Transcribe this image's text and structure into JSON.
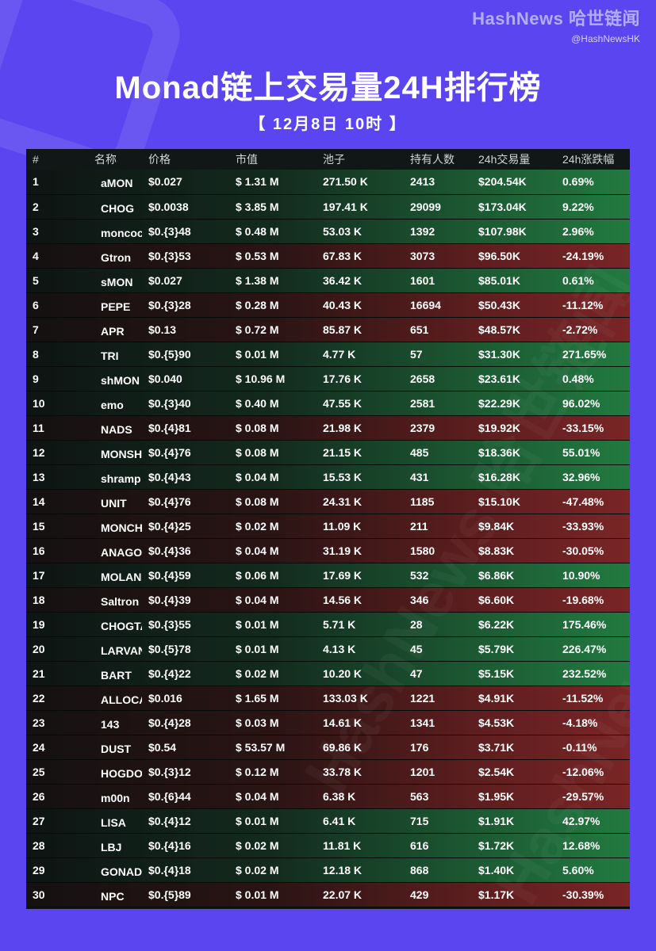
{
  "brand": {
    "name": "HashNews 哈世链闻",
    "handle": "@HashNewsHK"
  },
  "title": "Monad链上交易量24H排行榜",
  "subtitle": "【 12月8日  10时 】",
  "table": {
    "headers": [
      "#",
      "名称",
      "价格",
      "市值",
      "池子",
      "持有人数",
      "24h交易量",
      "24h涨跌幅"
    ],
    "rows": [
      {
        "rank": "1",
        "name": "aMON",
        "price": "$0.027",
        "mcap": "$ 1.31 M",
        "pool": "271.50 K",
        "holders": "2413",
        "volume": "$204.54K",
        "change": "0.69%",
        "trend": "up"
      },
      {
        "rank": "2",
        "name": "CHOG",
        "price": "$0.0038",
        "mcap": "$ 3.85 M",
        "pool": "197.41 K",
        "holders": "29099",
        "volume": "$173.04K",
        "change": "9.22%",
        "trend": "up"
      },
      {
        "rank": "3",
        "name": "moncock",
        "price": "$0.{3}48",
        "mcap": "$ 0.48 M",
        "pool": "53.03 K",
        "holders": "1392",
        "volume": "$107.98K",
        "change": "2.96%",
        "trend": "up"
      },
      {
        "rank": "4",
        "name": "Gtron",
        "price": "$0.{3}53",
        "mcap": "$ 0.53 M",
        "pool": "67.83 K",
        "holders": "3073",
        "volume": "$96.50K",
        "change": "-24.19%",
        "trend": "down"
      },
      {
        "rank": "5",
        "name": "sMON",
        "price": "$0.027",
        "mcap": "$ 1.38 M",
        "pool": "36.42 K",
        "holders": "1601",
        "volume": "$85.01K",
        "change": "0.61%",
        "trend": "up"
      },
      {
        "rank": "6",
        "name": "PEPE",
        "price": "$0.{3}28",
        "mcap": "$ 0.28 M",
        "pool": "40.43 K",
        "holders": "16694",
        "volume": "$50.43K",
        "change": "-11.12%",
        "trend": "down"
      },
      {
        "rank": "7",
        "name": "APR",
        "price": "$0.13",
        "mcap": "$ 0.72 M",
        "pool": "85.87 K",
        "holders": "651",
        "volume": "$48.57K",
        "change": "-2.72%",
        "trend": "down"
      },
      {
        "rank": "8",
        "name": "TRI",
        "price": "$0.{5}90",
        "mcap": "$ 0.01 M",
        "pool": "4.77 K",
        "holders": "57",
        "volume": "$31.30K",
        "change": "271.65%",
        "trend": "up"
      },
      {
        "rank": "9",
        "name": "shMON",
        "price": "$0.040",
        "mcap": "$ 10.96 M",
        "pool": "17.76 K",
        "holders": "2658",
        "volume": "$23.61K",
        "change": "0.48%",
        "trend": "up"
      },
      {
        "rank": "10",
        "name": "emo",
        "price": "$0.{3}40",
        "mcap": "$ 0.40 M",
        "pool": "47.55 K",
        "holders": "2581",
        "volume": "$22.29K",
        "change": "96.02%",
        "trend": "up"
      },
      {
        "rank": "11",
        "name": "NADS",
        "price": "$0.{4}81",
        "mcap": "$ 0.08 M",
        "pool": "21.98 K",
        "holders": "2379",
        "volume": "$19.92K",
        "change": "-33.15%",
        "trend": "down"
      },
      {
        "rank": "12",
        "name": "MONSHI",
        "price": "$0.{4}76",
        "mcap": "$ 0.08 M",
        "pool": "21.15 K",
        "holders": "485",
        "volume": "$18.36K",
        "change": "55.01%",
        "trend": "up"
      },
      {
        "rank": "13",
        "name": "shramp",
        "price": "$0.{4}43",
        "mcap": "$ 0.04 M",
        "pool": "15.53 K",
        "holders": "431",
        "volume": "$16.28K",
        "change": "32.96%",
        "trend": "up"
      },
      {
        "rank": "14",
        "name": "UNIT",
        "price": "$0.{4}76",
        "mcap": "$ 0.08 M",
        "pool": "24.31 K",
        "holders": "1185",
        "volume": "$15.10K",
        "change": "-47.48%",
        "trend": "down"
      },
      {
        "rank": "15",
        "name": "MONCHEL",
        "price": "$0.{4}25",
        "mcap": "$ 0.02 M",
        "pool": "11.09 K",
        "holders": "211",
        "volume": "$9.84K",
        "change": "-33.93%",
        "trend": "down"
      },
      {
        "rank": "16",
        "name": "ANAGO",
        "price": "$0.{4}36",
        "mcap": "$ 0.04 M",
        "pool": "31.19 K",
        "holders": "1580",
        "volume": "$8.83K",
        "change": "-30.05%",
        "trend": "down"
      },
      {
        "rank": "17",
        "name": "MOLANDAK",
        "price": "$0.{4}59",
        "mcap": "$ 0.06 M",
        "pool": "17.69 K",
        "holders": "532",
        "volume": "$6.86K",
        "change": "10.90%",
        "trend": "up"
      },
      {
        "rank": "18",
        "name": "Saltron",
        "price": "$0.{4}39",
        "mcap": "$ 0.04 M",
        "pool": "14.56 K",
        "holders": "346",
        "volume": "$6.60K",
        "change": "-19.68%",
        "trend": "down"
      },
      {
        "rank": "19",
        "name": "CHOGTARD",
        "price": "$0.{3}55",
        "mcap": "$ 0.01 M",
        "pool": "5.71 K",
        "holders": "28",
        "volume": "$6.22K",
        "change": "175.46%",
        "trend": "up"
      },
      {
        "rank": "20",
        "name": "LARVANAD",
        "price": "$0.{5}78",
        "mcap": "$ 0.01 M",
        "pool": "4.13 K",
        "holders": "45",
        "volume": "$5.79K",
        "change": "226.47%",
        "trend": "up"
      },
      {
        "rank": "21",
        "name": "BART",
        "price": "$0.{4}22",
        "mcap": "$ 0.02 M",
        "pool": "10.20 K",
        "holders": "47",
        "volume": "$5.15K",
        "change": "232.52%",
        "trend": "up"
      },
      {
        "rank": "22",
        "name": "ALLOCA",
        "price": "$0.016",
        "mcap": "$ 1.65 M",
        "pool": "133.03 K",
        "holders": "1221",
        "volume": "$4.91K",
        "change": "-11.52%",
        "trend": "down"
      },
      {
        "rank": "23",
        "name": "143",
        "price": "$0.{4}28",
        "mcap": "$ 0.03 M",
        "pool": "14.61 K",
        "holders": "1341",
        "volume": "$4.53K",
        "change": "-4.18%",
        "trend": "down"
      },
      {
        "rank": "24",
        "name": "DUST",
        "price": "$0.54",
        "mcap": "$ 53.57 M",
        "pool": "69.86 K",
        "holders": "176",
        "volume": "$3.71K",
        "change": "-0.11%",
        "trend": "down"
      },
      {
        "rank": "25",
        "name": "HOGDOG",
        "price": "$0.{3}12",
        "mcap": "$ 0.12 M",
        "pool": "33.78 K",
        "holders": "1201",
        "volume": "$2.54K",
        "change": "-12.06%",
        "trend": "down"
      },
      {
        "rank": "26",
        "name": "m00n",
        "price": "$0.{6}44",
        "mcap": "$ 0.04 M",
        "pool": "6.38 K",
        "holders": "563",
        "volume": "$1.95K",
        "change": "-29.57%",
        "trend": "down"
      },
      {
        "rank": "27",
        "name": "LISA",
        "price": "$0.{4}12",
        "mcap": "$ 0.01 M",
        "pool": "6.41 K",
        "holders": "715",
        "volume": "$1.91K",
        "change": "42.97%",
        "trend": "up"
      },
      {
        "rank": "28",
        "name": "LBJ",
        "price": "$0.{4}16",
        "mcap": "$ 0.02 M",
        "pool": "11.81 K",
        "holders": "616",
        "volume": "$1.72K",
        "change": "12.68%",
        "trend": "up"
      },
      {
        "rank": "29",
        "name": "GONAD",
        "price": "$0.{4}18",
        "mcap": "$ 0.02 M",
        "pool": "12.18 K",
        "holders": "868",
        "volume": "$1.40K",
        "change": "5.60%",
        "trend": "up"
      },
      {
        "rank": "30",
        "name": "NPC",
        "price": "$0.{5}89",
        "mcap": "$ 0.01 M",
        "pool": "22.07 K",
        "holders": "429",
        "volume": "$1.17K",
        "change": "-30.39%",
        "trend": "down"
      }
    ]
  },
  "colors": {
    "background": "#5a45f0",
    "up": "#227a40",
    "down": "#7a2526",
    "table_bg": "#0f1413"
  }
}
